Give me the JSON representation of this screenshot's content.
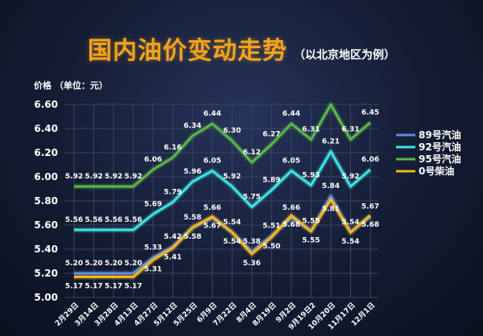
{
  "chart_data": {
    "type": "line",
    "title": "国内油价变动走势",
    "subtitle": "（以北京地区为例）",
    "ylabel": "价格 （单位：元）",
    "xlabel": "",
    "ylim": [
      5.0,
      6.6
    ],
    "yticks": [
      "5.00",
      "5.20",
      "5.40",
      "5.60",
      "5.80",
      "6.00",
      "6.20",
      "6.40",
      "6.60"
    ],
    "grid": true,
    "legend_position": "right",
    "categories": [
      "2月29日",
      "3月14日",
      "3月28日",
      "4月13日",
      "4月27日",
      "5月12日",
      "5月25日",
      "6月9日",
      "7月22日",
      "8月4日",
      "8月19日",
      "9月2日",
      "9月19日2",
      "10月20日",
      "11月17日",
      "12月1日"
    ],
    "series": [
      {
        "name": "89号汽油",
        "color": "#5b8fe0",
        "values": [
          5.2,
          5.2,
          5.2,
          5.2,
          5.33,
          5.42,
          5.58,
          5.66,
          5.54,
          5.38,
          5.51,
          5.66,
          5.55,
          5.84,
          5.54,
          5.67
        ],
        "labels": [
          "5.20",
          "5.20",
          "5.20",
          "5.20",
          "5.33",
          "5.42",
          "5.58",
          "5.66",
          "5.54",
          "5.38",
          "5.51",
          "5.66",
          "5.55",
          "5.84",
          "5.54",
          "5.67"
        ]
      },
      {
        "name": "92号汽油",
        "color": "#3fe6e6",
        "values": [
          5.56,
          5.56,
          5.56,
          5.56,
          5.69,
          5.79,
          5.96,
          6.05,
          5.92,
          5.75,
          5.89,
          6.05,
          5.93,
          6.21,
          5.92,
          6.06
        ],
        "labels": [
          "5.56",
          "5.56",
          "5.56",
          "5.56",
          "5.69",
          "5.79",
          "5.96",
          "6.05",
          "5.92",
          "5.75",
          "5.89",
          "6.05",
          "5.93",
          "6.21",
          "5.92",
          "6.06"
        ]
      },
      {
        "name": "95号汽油",
        "color": "#5bb84a",
        "values": [
          5.92,
          5.92,
          5.92,
          5.92,
          6.06,
          6.16,
          6.34,
          6.44,
          6.3,
          6.12,
          6.27,
          6.44,
          6.31,
          6.6,
          6.31,
          6.45
        ],
        "labels": [
          "5.92",
          "5.92",
          "5.92",
          "5.92",
          "6.06",
          "6.16",
          "6.34",
          "6.44",
          "6.30",
          "6.12",
          "6.27",
          "6.44",
          "6.31",
          "",
          "6.31",
          "6.45"
        ]
      },
      {
        "name": "0号柴油",
        "color": "#f5b71c",
        "values": [
          5.17,
          5.17,
          5.17,
          5.17,
          5.31,
          5.41,
          5.58,
          5.67,
          5.54,
          5.36,
          5.5,
          5.68,
          5.55,
          5.81,
          5.54,
          5.68
        ],
        "labels": [
          "5.17",
          "5.17",
          "5.17",
          "5.17",
          "5.31",
          "5.41",
          "5.58",
          "5.67",
          "5.54",
          "5.36",
          "5.50",
          "5.68",
          "5.55",
          "5.81",
          "5.54",
          "5.68"
        ]
      }
    ]
  }
}
